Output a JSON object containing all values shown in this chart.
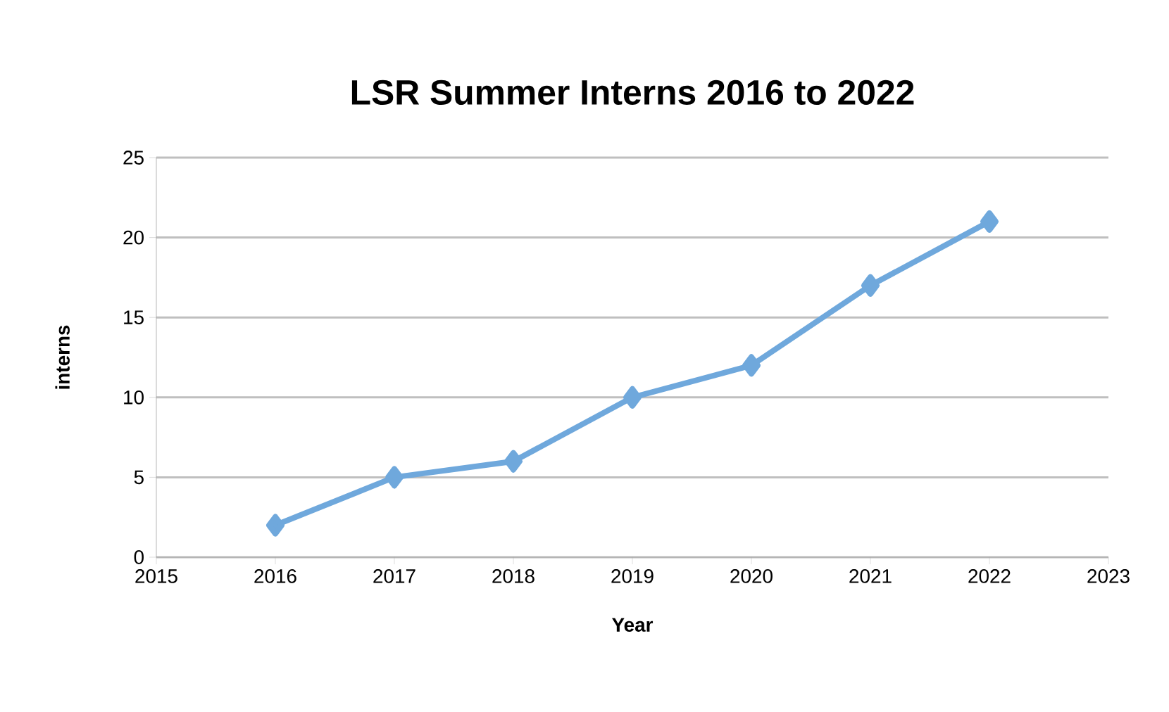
{
  "chart_data": {
    "type": "line",
    "title": "LSR Summer Interns 2016 to 2022",
    "xlabel": "Year",
    "ylabel": "interns",
    "x": [
      2016,
      2017,
      2018,
      2019,
      2020,
      2021,
      2022
    ],
    "series": [
      {
        "color": "#6fa8dc",
        "values": [
          2,
          5,
          6,
          10,
          12,
          17,
          21
        ]
      }
    ],
    "xlim": [
      2015,
      2023
    ],
    "xticks": [
      2015,
      2016,
      2017,
      2018,
      2019,
      2020,
      2021,
      2022,
      2023
    ],
    "ylim": [
      0,
      25
    ],
    "yticks": [
      0,
      5,
      10,
      15,
      20,
      25
    ],
    "grid": "y",
    "marker": "diamond",
    "line_style": "solid"
  }
}
